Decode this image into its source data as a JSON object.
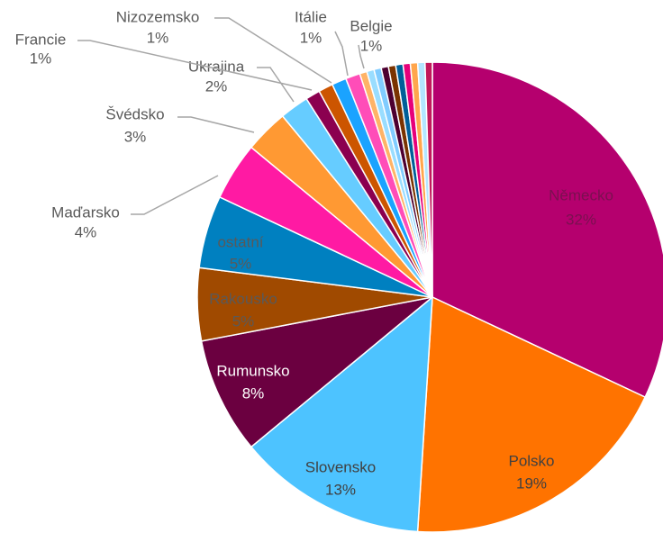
{
  "chart_data": {
    "type": "pie",
    "categories": [
      "Německo",
      "Polsko",
      "Slovensko",
      "Rumunsko",
      "Rakousko",
      "ostatní",
      "Maďarsko",
      "Švédsko",
      "Ukrajina",
      "Francie",
      "Nizozemsko",
      "Itálie",
      "Belgie",
      null,
      null,
      null,
      null,
      null,
      null,
      null,
      null,
      null,
      null
    ],
    "values": [
      32,
      19,
      13,
      8,
      5,
      5,
      4,
      3,
      2,
      1,
      1,
      1,
      1,
      0.5,
      0.5,
      0.5,
      0.5,
      0.5,
      0.5,
      0.5,
      0.5,
      0.5,
      0.5
    ],
    "value_labels": [
      "32%",
      "19%",
      "13%",
      "8%",
      "5%",
      "5%",
      "4%",
      "3%",
      "2%",
      "1%",
      "1%",
      "1%",
      "1%",
      null,
      null,
      null,
      null,
      null,
      null,
      null,
      null,
      null,
      null
    ],
    "colors": [
      "#b5006e",
      "#ff7300",
      "#4dc3ff",
      "#6b0040",
      "#a04a00",
      "#0080c0",
      "#ff1aa3",
      "#ff9933",
      "#66ccff",
      "#8b0050",
      "#cc5500",
      "#1aa3ff",
      "#ff4db8",
      "#ffb366",
      "#99ddff",
      "#80ccff",
      "#4d0030",
      "#7a3300",
      "#005f99",
      "#e6007a",
      "#ffa64d",
      "#b3e6ff",
      "#c2185b"
    ]
  }
}
